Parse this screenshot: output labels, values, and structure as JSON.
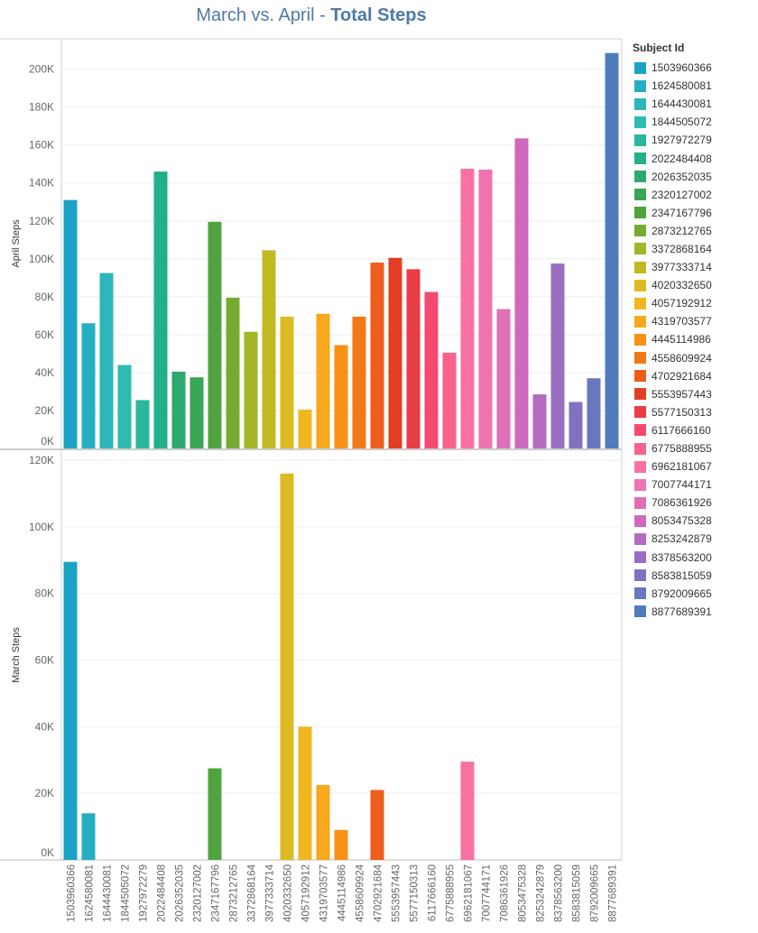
{
  "title": {
    "prefix": "March vs. April - ",
    "bold": "Total Steps"
  },
  "legend": {
    "title": "Subject Id"
  },
  "colors": [
    "#1ba3c6",
    "#2cb5c0",
    "#30bcad",
    "#21b087",
    "#33a65c",
    "#57a337",
    "#a2b627",
    "#d5bb21",
    "#f8b620",
    "#f89217",
    "#f06719",
    "#e03426",
    "#f64971",
    "#fc719e",
    "#eb73b3",
    "#ce69be",
    "#a26dc2",
    "#7873c0",
    "#4f7cba"
  ],
  "chart_data": {
    "type": "bar",
    "categories": [
      "1503960366",
      "1624580081",
      "1644430081",
      "1844505072",
      "1927972279",
      "2022484408",
      "2026352035",
      "2320127002",
      "2347167796",
      "2873212765",
      "3372868164",
      "3977333714",
      "4020332650",
      "4057192912",
      "4319703577",
      "4445114986",
      "4558609924",
      "4702921684",
      "5553957443",
      "5577150313",
      "6117666160",
      "6775888955",
      "6962181067",
      "7007744171",
      "7086361926",
      "8053475328",
      "8253242879",
      "8378563200",
      "8583815059",
      "8792009665",
      "8877689391"
    ],
    "series": [
      {
        "name": "April Steps",
        "values": [
          131000,
          66000,
          92500,
          44000,
          25500,
          146000,
          40500,
          37500,
          119500,
          79500,
          61500,
          104500,
          69500,
          20500,
          71000,
          54500,
          69500,
          98000,
          100500,
          94500,
          82500,
          50500,
          147500,
          147000,
          73500,
          163500,
          28500,
          97500,
          24500,
          37000,
          208500
        ],
        "ylim": [
          0,
          216000
        ],
        "ticks": [
          0,
          20000,
          40000,
          60000,
          80000,
          100000,
          120000,
          140000,
          160000,
          180000,
          200000
        ],
        "tick_labels": [
          "0K",
          "20K",
          "40K",
          "60K",
          "80K",
          "100K",
          "120K",
          "140K",
          "160K",
          "180K",
          "200K"
        ]
      },
      {
        "name": "March Steps",
        "values": [
          89500,
          14000,
          null,
          null,
          null,
          null,
          null,
          null,
          27500,
          null,
          null,
          null,
          116000,
          40000,
          22500,
          9000,
          null,
          21000,
          null,
          null,
          null,
          null,
          29500,
          null,
          null,
          null,
          null,
          null,
          null,
          null,
          null
        ],
        "ylim": [
          0,
          123000
        ],
        "ticks": [
          0,
          20000,
          40000,
          60000,
          80000,
          100000,
          120000
        ],
        "tick_labels": [
          "0K",
          "20K",
          "40K",
          "60K",
          "80K",
          "100K",
          "120K"
        ]
      }
    ],
    "legend_placement": "right",
    "grid": true
  }
}
